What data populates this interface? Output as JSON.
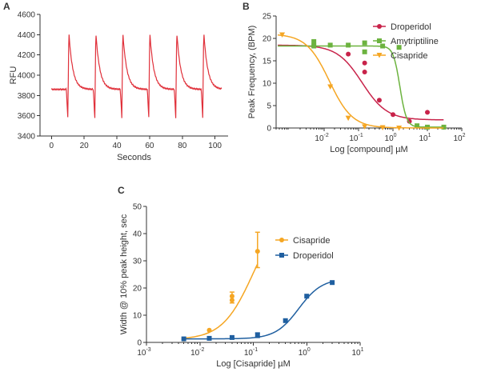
{
  "panels": [
    {
      "label": "A"
    },
    {
      "label": "B"
    },
    {
      "label": "C"
    }
  ],
  "chart_data": [
    {
      "panel": "A",
      "type": "line",
      "xlabel": "Seconds",
      "ylabel": "RFU",
      "xlim": [
        -7,
        108
      ],
      "ylim": [
        3400,
        4600
      ],
      "xticks": [
        0,
        20,
        40,
        60,
        80,
        100
      ],
      "yticks": [
        3400,
        3600,
        3800,
        4000,
        4200,
        4400,
        4600
      ],
      "color": "#e0303a",
      "baseline": 3860,
      "peak_times": [
        10,
        26.5,
        43,
        59.5,
        76,
        92.5
      ],
      "peak_value": 4430,
      "trough_value": 3580,
      "x_start": 0,
      "x_end": 104
    },
    {
      "panel": "B",
      "type": "scatter",
      "xlabel": "Log [compound]  µM",
      "ylabel": "Peak Frequency, (BPM)",
      "xscale": "log",
      "xlim": [
        0.0004,
        100
      ],
      "ylim": [
        0,
        25
      ],
      "xticks": [
        -2,
        -1,
        0,
        1,
        2
      ],
      "yticks": [
        0,
        5,
        10,
        15,
        20,
        25
      ],
      "legend_position": "top-right",
      "series": [
        {
          "name": "Droperidol",
          "color": "#c8234a",
          "marker": "circle",
          "top": 18.5,
          "bottom": 1.8,
          "log_ec50": -0.9,
          "hill": 1.2,
          "points": [
            [
              0.005,
              18.5
            ],
            [
              0.05,
              16.5
            ],
            [
              0.15,
              14.5
            ],
            [
              0.15,
              12.5
            ],
            [
              0.4,
              6.2
            ],
            [
              1.0,
              3.0
            ],
            [
              3.0,
              1.5
            ],
            [
              10,
              3.5
            ]
          ]
        },
        {
          "name": "Amytriptiline",
          "color": "#6cb33f",
          "marker": "square",
          "top": 18.3,
          "bottom": 0.2,
          "log_ec50": 0.2,
          "hill": 4.5,
          "points": [
            [
              0.005,
              19.3
            ],
            [
              0.005,
              18.3
            ],
            [
              0.015,
              18.5
            ],
            [
              0.05,
              18.5
            ],
            [
              0.15,
              17.0
            ],
            [
              0.15,
              19.0
            ],
            [
              0.5,
              18.3
            ],
            [
              1.5,
              18.0
            ],
            [
              5,
              0.5
            ],
            [
              10,
              0.2
            ],
            [
              30,
              0.2
            ]
          ]
        },
        {
          "name": "Cisapride",
          "color": "#f5a623",
          "marker": "triangle",
          "top": 21.0,
          "bottom": 0.0,
          "log_ec50": -1.85,
          "hill": 1.3,
          "points": [
            [
              0.0006,
              20.8
            ],
            [
              0.015,
              9.2
            ],
            [
              0.05,
              2.2
            ],
            [
              0.15,
              0.3
            ],
            [
              0.5,
              0.1
            ],
            [
              1.5,
              0.0
            ]
          ]
        }
      ]
    },
    {
      "panel": "C",
      "type": "scatter",
      "xlabel": "Log [Cisapride]  µM",
      "ylabel": "Width @ 10% peak height, sec",
      "xscale": "log",
      "xlim": [
        0.001,
        10
      ],
      "ylim": [
        0,
        50
      ],
      "xticks": [
        -3,
        -2,
        -1,
        0,
        1
      ],
      "yticks": [
        0,
        10,
        20,
        30,
        40,
        50
      ],
      "legend_position": "top-right",
      "series": [
        {
          "name": "Cisapride",
          "color": "#f5a623",
          "marker": "circle",
          "top": 50,
          "bottom": 1.0,
          "log_ec50": -1.0,
          "hill": 1.5,
          "fit_xmax": 0.125,
          "points": [
            [
              0.005,
              1.2
            ],
            [
              0.015,
              4.5
            ],
            [
              0.04,
              15.5
            ],
            [
              0.04,
              17.0
            ],
            [
              0.12,
              33.5
            ]
          ],
          "errors": [
            [
              0.04,
              14.5,
              18.5
            ],
            [
              0.12,
              27.5,
              40.5
            ]
          ]
        },
        {
          "name": "Droperidol",
          "color": "#1f5fa0",
          "marker": "square",
          "top": 23.5,
          "bottom": 1.3,
          "log_ec50": -0.15,
          "hill": 2.0,
          "fit_xmax": 3.2,
          "points": [
            [
              0.005,
              1.3
            ],
            [
              0.015,
              1.5
            ],
            [
              0.04,
              1.8
            ],
            [
              0.12,
              2.7
            ],
            [
              0.4,
              8.0
            ],
            [
              1.0,
              17.0
            ],
            [
              3.0,
              22.0
            ]
          ],
          "errors": [
            [
              0.12,
              1.8,
              3.5
            ]
          ]
        }
      ]
    }
  ]
}
